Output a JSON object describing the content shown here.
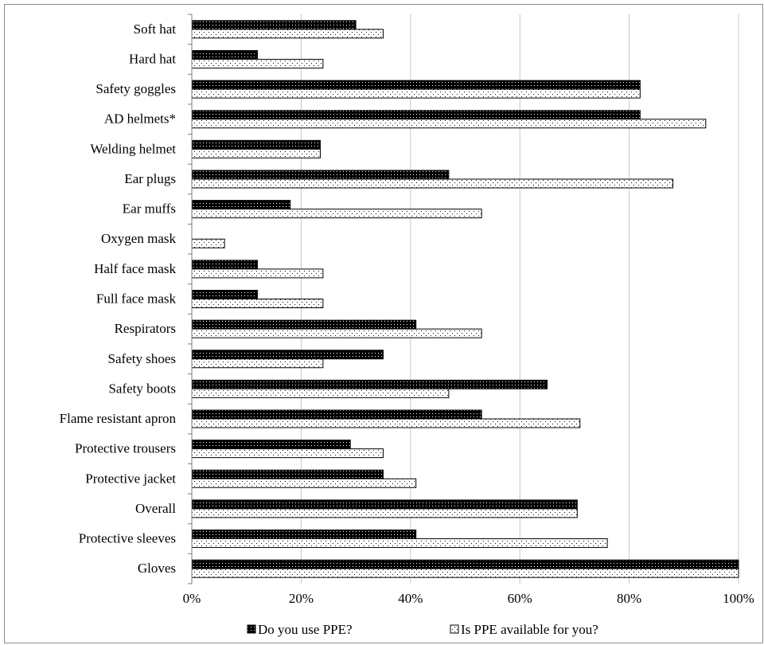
{
  "chart_data": {
    "type": "bar",
    "orientation": "horizontal",
    "categories": [
      "Soft hat",
      "Hard hat",
      "Safety goggles",
      "AD helmets*",
      "Welding helmet",
      "Ear plugs",
      "Ear muffs",
      "Oxygen mask",
      "Half face mask",
      "Full face mask",
      "Respirators",
      "Safety shoes",
      "Safety boots",
      "Flame resistant apron",
      "Protective trousers",
      "Protective jacket",
      "Overall",
      "Protective sleeves",
      "Gloves"
    ],
    "series": [
      {
        "name": "Do you use PPE?",
        "values": [
          30,
          12,
          82,
          82,
          23.5,
          47,
          18,
          0,
          12,
          12,
          41,
          35,
          65,
          53,
          29,
          35,
          70.5,
          41,
          100
        ]
      },
      {
        "name": "Is PPE available for you?",
        "values": [
          35,
          24,
          82,
          94,
          23.5,
          88,
          53,
          6,
          24,
          24,
          53,
          24,
          47,
          71,
          35,
          41,
          70.5,
          76,
          100
        ]
      }
    ],
    "xlim": [
      0,
      100
    ],
    "xticks": [
      "0%",
      "20%",
      "40%",
      "60%",
      "80%",
      "100%"
    ],
    "grid": "vertical",
    "legend_position": "bottom",
    "colors": {
      "series_use": "#000000",
      "series_available": "#ffffff",
      "grid": "#c8c8c8",
      "axis": "#7f7f7f"
    }
  }
}
